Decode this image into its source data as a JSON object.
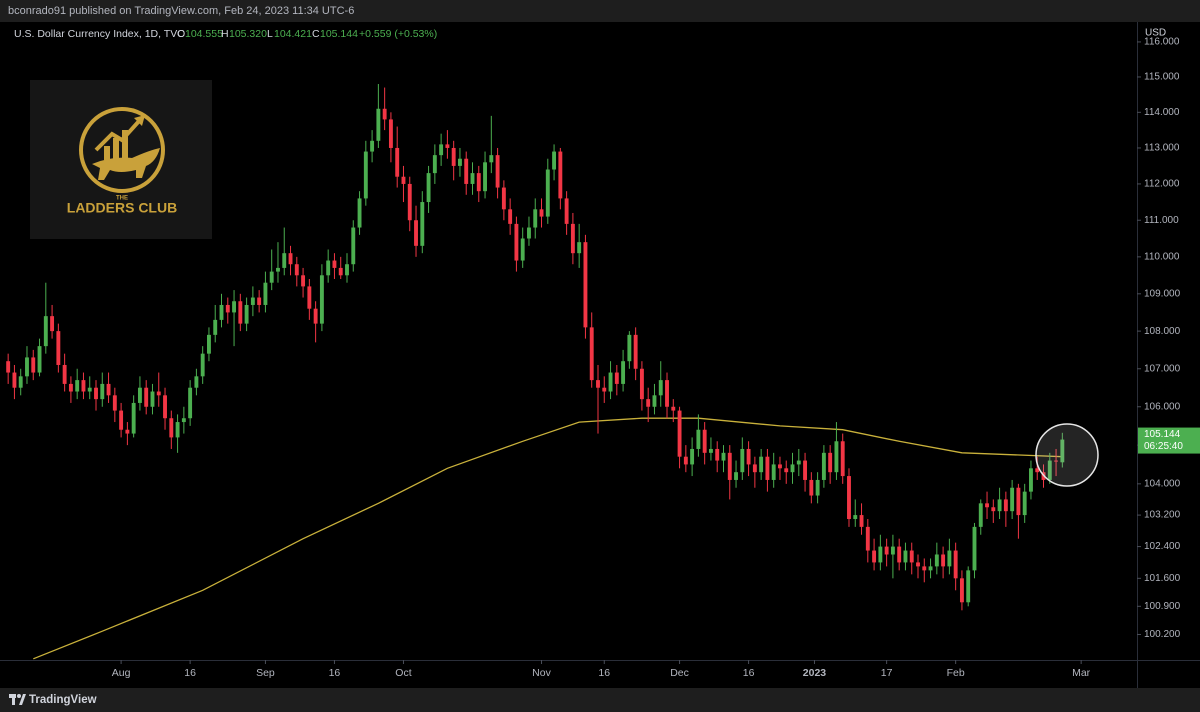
{
  "header": {
    "publisher": "bconrado91 published on TradingView.com, Feb 24, 2023 11:34 UTC-6"
  },
  "chart_data": {
    "type": "candlestick",
    "title": "U.S. Dollar Currency Index, 1D, TVC",
    "legend": {
      "o": "O",
      "o_value": "104.555",
      "h": "H",
      "h_value": "105.320",
      "l": "L",
      "l_value": "104.421",
      "c": "C",
      "c_value": "105.144",
      "change": "+0.559 (+0.53%)"
    },
    "up_color": "#4caf50",
    "down_color": "#f23645",
    "log": true,
    "grid": false,
    "currency": "USD",
    "last_price_label": "105.144",
    "countdown": "06:25:40",
    "xlim": [
      -1.3,
      179.9
    ],
    "xticks": [
      {
        "value": 18,
        "label": "Aug"
      },
      {
        "value": 29,
        "label": "16"
      },
      {
        "value": 41,
        "label": "Sep"
      },
      {
        "value": 52,
        "label": "16"
      },
      {
        "value": 63,
        "label": "Oct"
      },
      {
        "value": 85,
        "label": "Nov"
      },
      {
        "value": 95,
        "label": "16"
      },
      {
        "value": 107,
        "label": "Dec"
      },
      {
        "value": 118,
        "label": "16"
      },
      {
        "value": 128.5,
        "label": "2023"
      },
      {
        "value": 140,
        "label": "17"
      },
      {
        "value": 151,
        "label": "Feb"
      },
      {
        "value": 171,
        "label": "Mar"
      }
    ],
    "ylim": [
      99.57,
      116.4
    ],
    "yticks": [
      {
        "value": 100.2,
        "label": "100.200"
      },
      {
        "value": 100.9,
        "label": "100.900"
      },
      {
        "value": 101.6,
        "label": "101.600"
      },
      {
        "value": 102.4,
        "label": "102.400"
      },
      {
        "value": 103.2,
        "label": "103.200"
      },
      {
        "value": 104,
        "label": "104.000"
      },
      {
        "value": 105,
        "label": "105.000"
      },
      {
        "value": 106,
        "label": "106.000"
      },
      {
        "value": 107,
        "label": "107.000"
      },
      {
        "value": 108,
        "label": "108.000"
      },
      {
        "value": 109,
        "label": "109.000"
      },
      {
        "value": 110,
        "label": "110.000"
      },
      {
        "value": 111,
        "label": "111.000"
      },
      {
        "value": 112,
        "label": "112.000"
      },
      {
        "value": 113,
        "label": "113.000"
      },
      {
        "value": 114,
        "label": "114.000"
      },
      {
        "value": 115,
        "label": "115.000"
      },
      {
        "value": 116,
        "label": "116.000"
      }
    ],
    "ohlc": [
      [
        107.2,
        107.4,
        106.6,
        106.9
      ],
      [
        106.9,
        107.1,
        106.2,
        106.5
      ],
      [
        106.5,
        107.0,
        106.3,
        106.8
      ],
      [
        106.8,
        107.6,
        106.6,
        107.3
      ],
      [
        107.3,
        107.5,
        106.7,
        106.9
      ],
      [
        106.9,
        107.8,
        106.8,
        107.6
      ],
      [
        107.6,
        109.3,
        107.4,
        108.4
      ],
      [
        108.4,
        108.7,
        107.8,
        108.0
      ],
      [
        108.0,
        108.2,
        106.9,
        107.1
      ],
      [
        107.1,
        107.4,
        106.4,
        106.6
      ],
      [
        106.6,
        106.8,
        106.1,
        106.4
      ],
      [
        106.4,
        107.0,
        106.2,
        106.7
      ],
      [
        106.7,
        106.9,
        106.2,
        106.4
      ],
      [
        106.4,
        106.8,
        106.2,
        106.5
      ],
      [
        106.5,
        106.7,
        105.9,
        106.2
      ],
      [
        106.2,
        106.9,
        106.0,
        106.6
      ],
      [
        106.6,
        106.9,
        106.1,
        106.3
      ],
      [
        106.3,
        106.5,
        105.6,
        105.9
      ],
      [
        105.9,
        106.1,
        105.2,
        105.4
      ],
      [
        105.4,
        105.6,
        105.0,
        105.3
      ],
      [
        105.3,
        106.3,
        105.2,
        106.1
      ],
      [
        106.1,
        106.8,
        105.9,
        106.5
      ],
      [
        106.5,
        106.7,
        105.8,
        106.0
      ],
      [
        106.0,
        106.6,
        105.8,
        106.4
      ],
      [
        106.4,
        106.9,
        106.0,
        106.3
      ],
      [
        106.3,
        106.5,
        105.4,
        105.7
      ],
      [
        105.7,
        105.9,
        104.9,
        105.2
      ],
      [
        105.2,
        105.8,
        104.8,
        105.6
      ],
      [
        105.6,
        106.0,
        105.3,
        105.7
      ],
      [
        105.7,
        106.7,
        105.5,
        106.5
      ],
      [
        106.5,
        107.0,
        106.3,
        106.8
      ],
      [
        106.8,
        107.6,
        106.6,
        107.4
      ],
      [
        107.4,
        108.1,
        107.2,
        107.9
      ],
      [
        107.9,
        108.7,
        107.7,
        108.3
      ],
      [
        108.3,
        109.0,
        108.1,
        108.7
      ],
      [
        108.7,
        108.9,
        108.2,
        108.5
      ],
      [
        108.5,
        109.1,
        107.6,
        108.8
      ],
      [
        108.8,
        109.0,
        108.0,
        108.2
      ],
      [
        108.2,
        108.9,
        108.0,
        108.7
      ],
      [
        108.7,
        109.2,
        108.4,
        108.9
      ],
      [
        108.9,
        109.1,
        108.5,
        108.7
      ],
      [
        108.7,
        109.6,
        108.5,
        109.3
      ],
      [
        109.3,
        110.2,
        109.1,
        109.6
      ],
      [
        109.6,
        110.4,
        109.3,
        109.7
      ],
      [
        109.7,
        110.8,
        109.5,
        110.1
      ],
      [
        110.1,
        110.3,
        109.5,
        109.8
      ],
      [
        109.8,
        110.0,
        109.2,
        109.5
      ],
      [
        109.5,
        109.7,
        108.9,
        109.2
      ],
      [
        109.2,
        109.4,
        108.3,
        108.6
      ],
      [
        108.6,
        108.8,
        107.7,
        108.2
      ],
      [
        108.2,
        109.8,
        108.0,
        109.5
      ],
      [
        109.5,
        110.2,
        109.3,
        109.9
      ],
      [
        109.9,
        110.1,
        109.4,
        109.7
      ],
      [
        109.7,
        110.0,
        109.4,
        109.5
      ],
      [
        109.5,
        110.1,
        109.3,
        109.8
      ],
      [
        109.8,
        111.0,
        109.6,
        110.8
      ],
      [
        110.8,
        111.8,
        110.6,
        111.6
      ],
      [
        111.6,
        113.2,
        111.4,
        112.9
      ],
      [
        112.9,
        113.5,
        112.6,
        113.2
      ],
      [
        113.2,
        114.8,
        113.0,
        114.1
      ],
      [
        114.1,
        114.7,
        113.5,
        113.8
      ],
      [
        113.8,
        114.0,
        112.6,
        113.0
      ],
      [
        113.0,
        113.6,
        111.9,
        112.2
      ],
      [
        112.2,
        112.5,
        111.5,
        112.0
      ],
      [
        112.0,
        112.2,
        110.7,
        111.0
      ],
      [
        111.0,
        111.4,
        110.0,
        110.3
      ],
      [
        110.3,
        111.8,
        110.1,
        111.5
      ],
      [
        111.5,
        112.5,
        111.2,
        112.3
      ],
      [
        112.3,
        113.1,
        112.0,
        112.8
      ],
      [
        112.8,
        113.4,
        112.5,
        113.1
      ],
      [
        113.1,
        113.5,
        112.7,
        113.0
      ],
      [
        113.0,
        113.2,
        112.1,
        112.5
      ],
      [
        112.5,
        113.0,
        112.2,
        112.7
      ],
      [
        112.7,
        112.9,
        111.7,
        112.0
      ],
      [
        112.0,
        112.6,
        111.7,
        112.3
      ],
      [
        112.3,
        112.5,
        111.5,
        111.8
      ],
      [
        111.8,
        112.9,
        111.6,
        112.6
      ],
      [
        112.6,
        113.9,
        112.3,
        112.8
      ],
      [
        112.8,
        113.0,
        111.6,
        111.9
      ],
      [
        111.9,
        112.1,
        111.0,
        111.3
      ],
      [
        111.3,
        111.6,
        110.6,
        110.9
      ],
      [
        110.9,
        111.1,
        109.6,
        109.9
      ],
      [
        109.9,
        110.8,
        109.7,
        110.5
      ],
      [
        110.5,
        111.1,
        110.3,
        110.8
      ],
      [
        110.8,
        111.6,
        110.5,
        111.3
      ],
      [
        111.3,
        111.6,
        110.8,
        111.1
      ],
      [
        111.1,
        112.7,
        110.9,
        112.4
      ],
      [
        112.4,
        113.1,
        112.1,
        112.9
      ],
      [
        112.9,
        113.0,
        111.3,
        111.6
      ],
      [
        111.6,
        111.8,
        110.6,
        110.9
      ],
      [
        110.9,
        111.2,
        109.8,
        110.1
      ],
      [
        110.1,
        110.9,
        109.7,
        110.4
      ],
      [
        110.4,
        110.6,
        107.8,
        108.1
      ],
      [
        108.1,
        108.5,
        106.5,
        106.7
      ],
      [
        106.7,
        107.1,
        105.3,
        106.5
      ],
      [
        106.5,
        106.8,
        106.1,
        106.4
      ],
      [
        106.4,
        107.2,
        106.2,
        106.9
      ],
      [
        106.9,
        107.1,
        106.3,
        106.6
      ],
      [
        106.6,
        107.5,
        106.4,
        107.2
      ],
      [
        107.2,
        108.0,
        107.0,
        107.9
      ],
      [
        107.9,
        108.1,
        106.7,
        107.0
      ],
      [
        107.0,
        107.2,
        105.9,
        106.2
      ],
      [
        106.2,
        106.5,
        105.6,
        106.0
      ],
      [
        106.0,
        106.6,
        105.8,
        106.3
      ],
      [
        106.3,
        107.2,
        106.0,
        106.7
      ],
      [
        106.7,
        106.9,
        105.7,
        106.0
      ],
      [
        106.0,
        106.2,
        105.6,
        105.9
      ],
      [
        105.9,
        106.0,
        104.4,
        104.7
      ],
      [
        104.7,
        105.0,
        104.3,
        104.5
      ],
      [
        104.5,
        105.2,
        104.2,
        104.9
      ],
      [
        104.9,
        105.8,
        104.7,
        105.4
      ],
      [
        105.4,
        105.6,
        104.5,
        104.8
      ],
      [
        104.8,
        105.2,
        104.6,
        104.9
      ],
      [
        104.9,
        105.1,
        104.3,
        104.6
      ],
      [
        104.6,
        105.0,
        104.3,
        104.8
      ],
      [
        104.8,
        105.0,
        103.6,
        104.1
      ],
      [
        104.1,
        104.6,
        103.9,
        104.3
      ],
      [
        104.3,
        105.2,
        104.1,
        104.9
      ],
      [
        104.9,
        105.1,
        104.2,
        104.5
      ],
      [
        104.5,
        104.7,
        103.9,
        104.3
      ],
      [
        104.3,
        104.9,
        104.1,
        104.7
      ],
      [
        104.7,
        104.9,
        103.8,
        104.1
      ],
      [
        104.1,
        104.8,
        103.9,
        104.5
      ],
      [
        104.5,
        104.7,
        104.1,
        104.4
      ],
      [
        104.4,
        104.6,
        104.0,
        104.3
      ],
      [
        104.3,
        104.8,
        104.0,
        104.5
      ],
      [
        104.5,
        104.9,
        104.2,
        104.6
      ],
      [
        104.6,
        104.8,
        103.8,
        104.1
      ],
      [
        104.1,
        104.3,
        103.5,
        103.7
      ],
      [
        103.7,
        104.3,
        103.5,
        104.1
      ],
      [
        104.1,
        105.0,
        103.9,
        104.8
      ],
      [
        104.8,
        105.0,
        104.0,
        104.3
      ],
      [
        104.3,
        105.6,
        104.1,
        105.1
      ],
      [
        105.1,
        105.3,
        104.0,
        104.2
      ],
      [
        104.2,
        104.4,
        102.9,
        103.1
      ],
      [
        103.1,
        103.6,
        102.9,
        103.2
      ],
      [
        103.2,
        103.5,
        102.7,
        102.9
      ],
      [
        102.9,
        103.1,
        102.0,
        102.3
      ],
      [
        102.3,
        102.6,
        101.8,
        102.0
      ],
      [
        102.0,
        102.7,
        101.8,
        102.4
      ],
      [
        102.4,
        102.6,
        101.9,
        102.2
      ],
      [
        102.2,
        102.7,
        101.6,
        102.4
      ],
      [
        102.4,
        102.6,
        101.8,
        102.0
      ],
      [
        102.0,
        102.5,
        101.8,
        102.3
      ],
      [
        102.3,
        102.5,
        101.7,
        102.0
      ],
      [
        102.0,
        102.2,
        101.6,
        101.9
      ],
      [
        101.9,
        102.1,
        101.5,
        101.8
      ],
      [
        101.8,
        102.1,
        101.6,
        101.9
      ],
      [
        101.9,
        102.5,
        101.7,
        102.2
      ],
      [
        102.2,
        102.4,
        101.6,
        101.9
      ],
      [
        101.9,
        102.6,
        101.7,
        102.3
      ],
      [
        102.3,
        102.5,
        101.3,
        101.6
      ],
      [
        101.6,
        101.8,
        100.8,
        101.0
      ],
      [
        101.0,
        101.9,
        100.9,
        101.8
      ],
      [
        101.8,
        103.0,
        101.6,
        102.9
      ],
      [
        102.9,
        103.6,
        102.7,
        103.5
      ],
      [
        103.5,
        103.8,
        103.1,
        103.4
      ],
      [
        103.4,
        103.6,
        103.0,
        103.3
      ],
      [
        103.3,
        103.9,
        103.1,
        103.6
      ],
      [
        103.6,
        103.8,
        102.9,
        103.3
      ],
      [
        103.3,
        104.1,
        103.1,
        103.9
      ],
      [
        103.9,
        104.0,
        102.6,
        103.2
      ],
      [
        103.2,
        104.0,
        103.0,
        103.8
      ],
      [
        103.8,
        104.6,
        103.6,
        104.4
      ],
      [
        104.4,
        104.7,
        104.1,
        104.3
      ],
      [
        104.3,
        104.5,
        103.9,
        104.1
      ],
      [
        104.1,
        104.8,
        104.0,
        104.6
      ],
      [
        104.6,
        104.9,
        104.2,
        104.585
      ],
      [
        104.555,
        105.32,
        104.421,
        105.144
      ]
    ],
    "moving_average": {
      "color": "#c9b13b",
      "x": [
        4,
        15,
        31,
        47,
        59,
        70,
        82,
        91,
        101,
        110,
        123,
        133,
        142,
        152,
        168
      ],
      "values": [
        99.6,
        100.28,
        101.3,
        102.6,
        103.5,
        104.4,
        105.1,
        105.6,
        105.7,
        105.7,
        105.5,
        105.4,
        105.1,
        104.8,
        104.7
      ]
    }
  },
  "logo": {
    "small": "THE",
    "name": "LADDERS CLUB"
  },
  "footer": {
    "brand": "TradingView"
  }
}
